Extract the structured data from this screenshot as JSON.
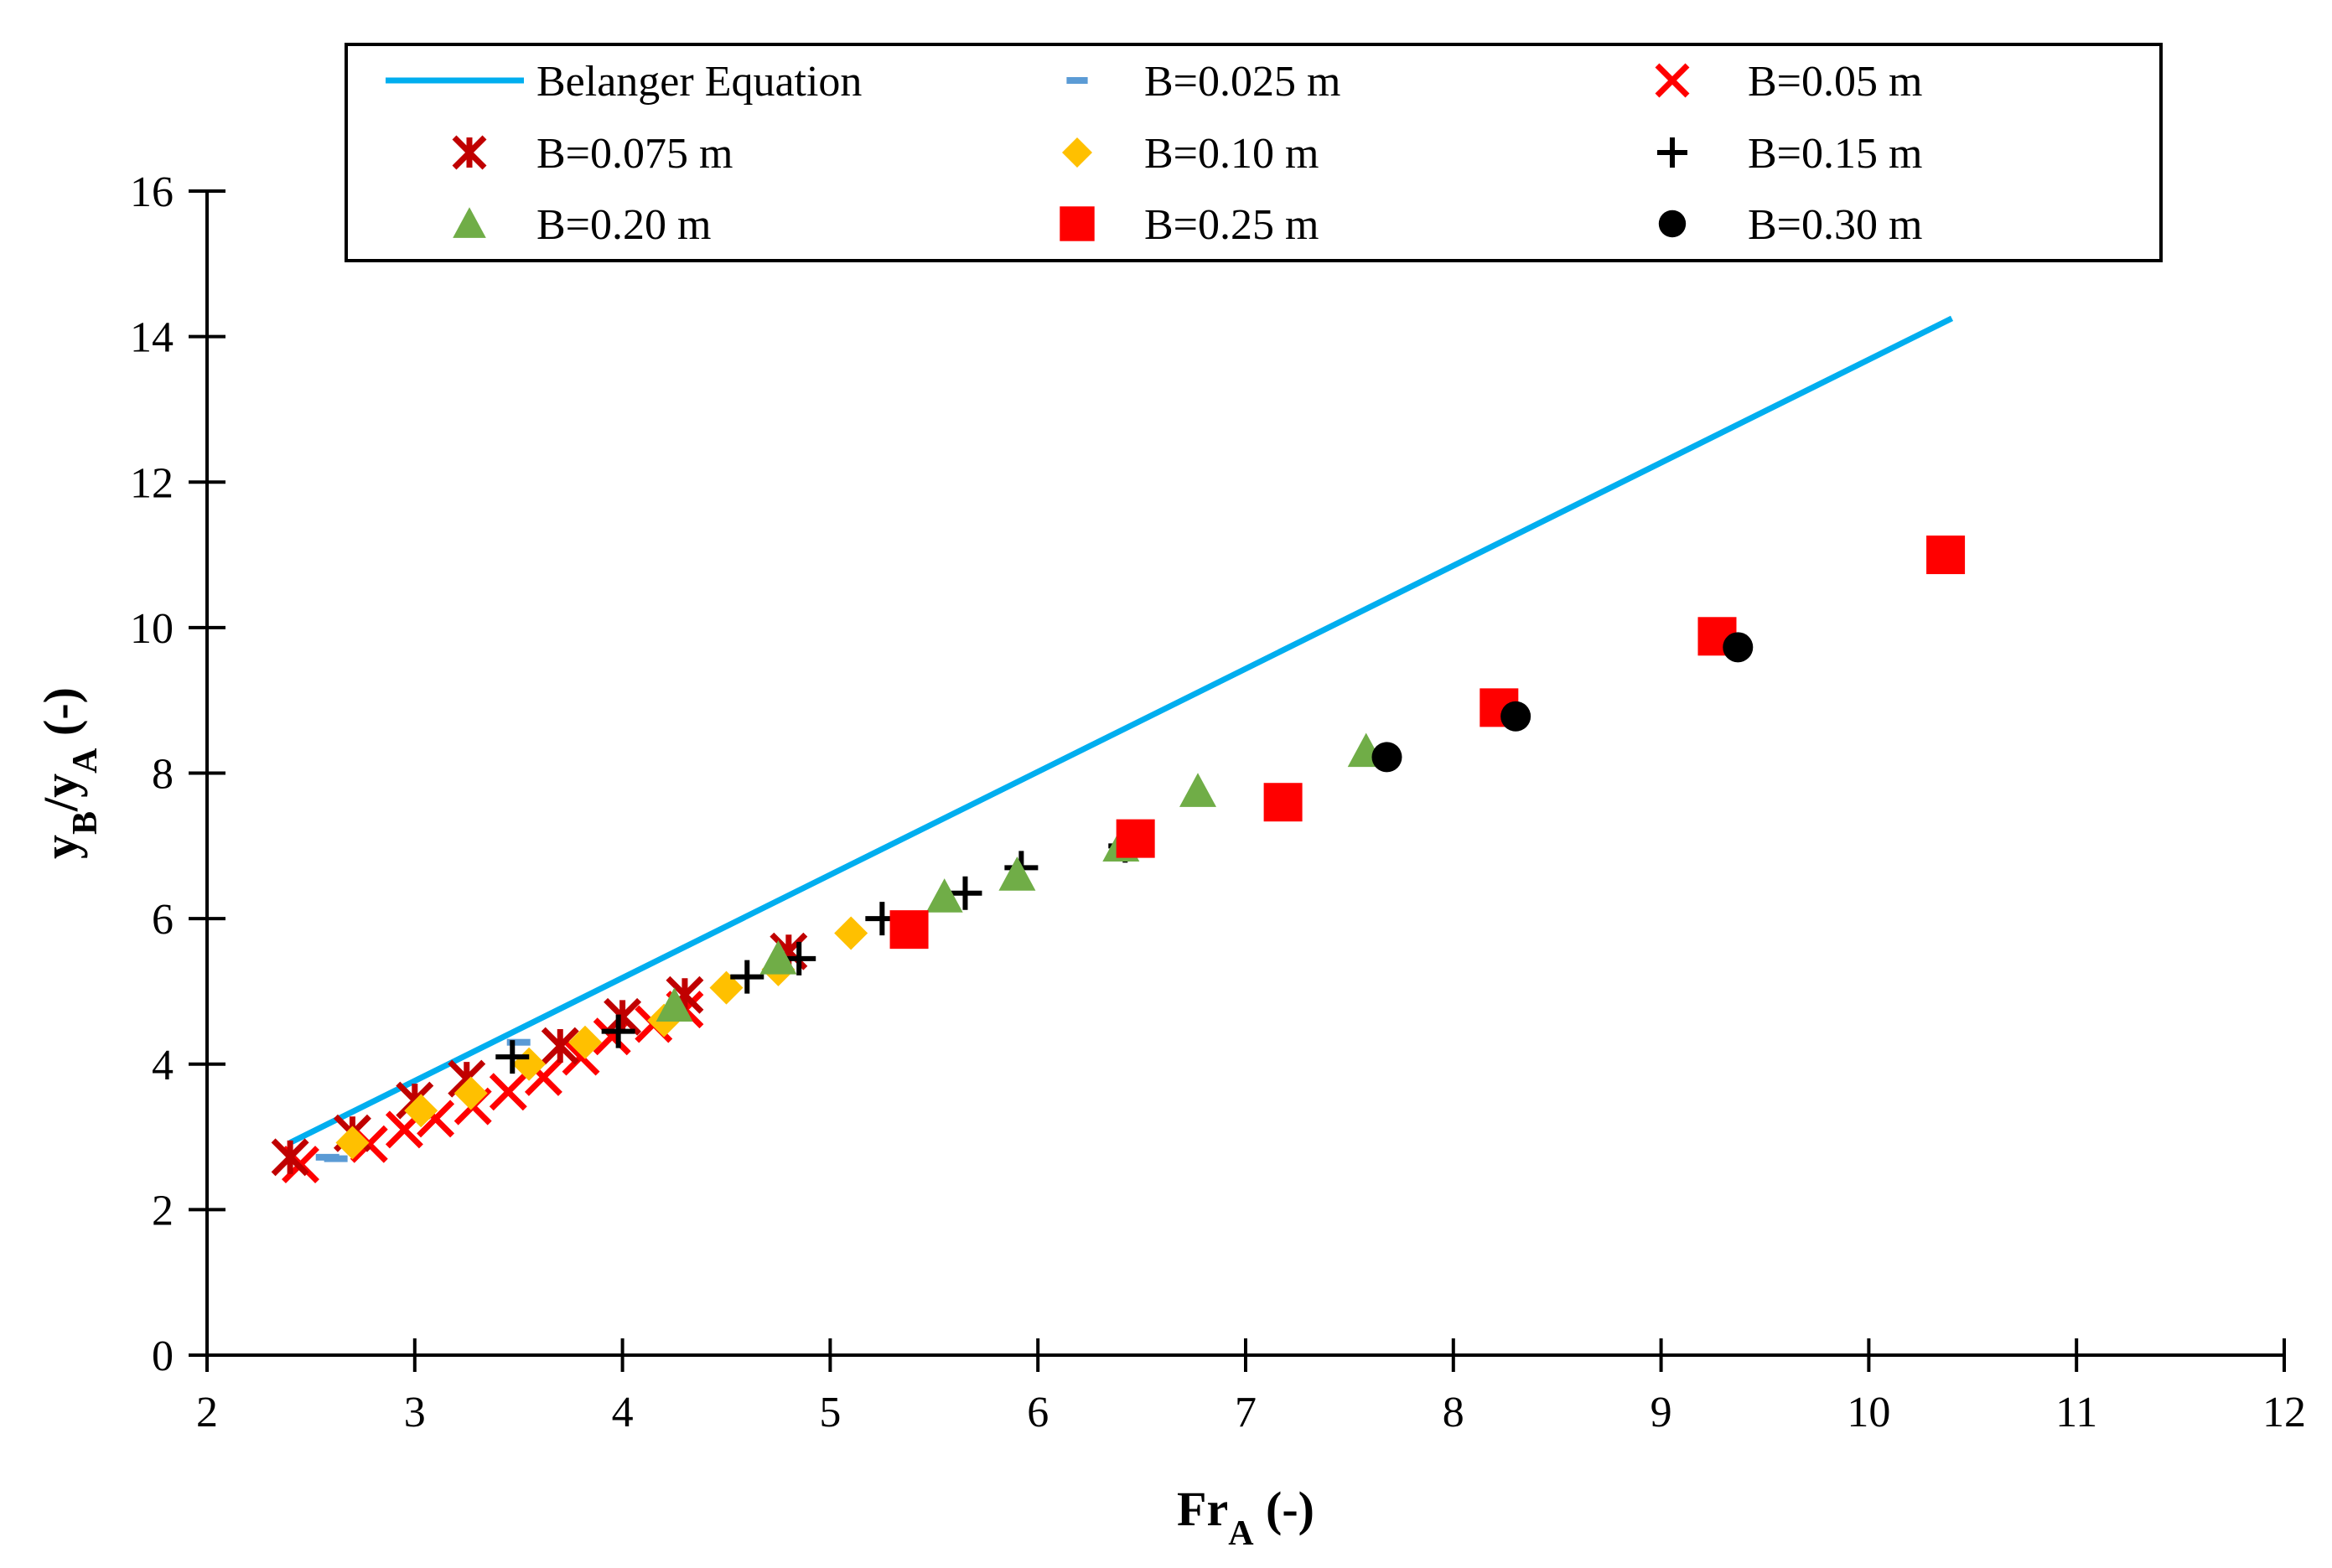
{
  "chart_data": {
    "type": "scatter",
    "title": "",
    "xlabel": "Fr",
    "xlabel_sub": "A",
    "xlabel_suffix": " (-)",
    "ylabel_parts": [
      "y",
      "B",
      "/y",
      "A",
      " (-)"
    ],
    "xlim": [
      2,
      12
    ],
    "ylim": [
      0,
      16
    ],
    "xticks": [
      "2",
      "3",
      "4",
      "5",
      "6",
      "7",
      "8",
      "9",
      "10",
      "11",
      "12"
    ],
    "yticks": [
      "0",
      "2",
      "4",
      "6",
      "8",
      "10",
      "12",
      "14",
      "16"
    ],
    "legend_placement": "top",
    "line": {
      "name": "Belanger Equation",
      "color": "#00AEEF",
      "x": [
        2.4,
        10.4
      ],
      "y": [
        2.92,
        14.25
      ]
    },
    "series": [
      {
        "name": "B=0.025 m",
        "marker": "dash",
        "color": "#5B9BD5",
        "points": [
          [
            2.58,
            2.72
          ],
          [
            2.62,
            2.7
          ],
          [
            3.5,
            4.3
          ]
        ]
      },
      {
        "name": "B=0.05 m",
        "marker": "x",
        "color": "#FF0000",
        "points": [
          [
            2.45,
            2.62
          ],
          [
            2.78,
            2.9
          ],
          [
            2.95,
            3.1
          ],
          [
            3.1,
            3.25
          ],
          [
            3.28,
            3.42
          ],
          [
            3.45,
            3.62
          ],
          [
            3.62,
            3.82
          ],
          [
            3.8,
            4.1
          ],
          [
            3.95,
            4.38
          ],
          [
            4.15,
            4.55
          ],
          [
            4.3,
            4.75
          ]
        ]
      },
      {
        "name": "B=0.075 m",
        "marker": "star",
        "color": "#C00000",
        "points": [
          [
            2.4,
            2.72
          ],
          [
            2.7,
            3.05
          ],
          [
            3.0,
            3.5
          ],
          [
            3.25,
            3.8
          ],
          [
            3.7,
            4.25
          ],
          [
            4.0,
            4.65
          ],
          [
            4.3,
            4.95
          ],
          [
            4.8,
            5.55
          ]
        ]
      },
      {
        "name": "B=0.10 m",
        "marker": "diamond",
        "color": "#FFC000",
        "points": [
          [
            2.7,
            2.92
          ],
          [
            3.03,
            3.36
          ],
          [
            3.27,
            3.6
          ],
          [
            3.55,
            4.0
          ],
          [
            3.82,
            4.3
          ],
          [
            4.2,
            4.6
          ],
          [
            4.5,
            5.05
          ],
          [
            4.75,
            5.3
          ],
          [
            5.1,
            5.8
          ]
        ]
      },
      {
        "name": "B=0.15 m",
        "marker": "plus",
        "color": "#000000",
        "points": [
          [
            3.47,
            4.1
          ],
          [
            3.98,
            4.45
          ],
          [
            4.6,
            5.2
          ],
          [
            4.85,
            5.45
          ],
          [
            5.25,
            6.0
          ],
          [
            5.65,
            6.35
          ],
          [
            5.92,
            6.7
          ],
          [
            6.42,
            7.0
          ]
        ]
      },
      {
        "name": "B=0.20 m",
        "marker": "triangle",
        "color": "#70AD47",
        "points": [
          [
            4.25,
            4.8
          ],
          [
            4.75,
            5.45
          ],
          [
            5.55,
            6.3
          ],
          [
            5.9,
            6.6
          ],
          [
            6.4,
            7.0
          ],
          [
            6.77,
            7.75
          ],
          [
            7.58,
            8.3
          ]
        ]
      },
      {
        "name": "B=0.25 m",
        "marker": "square",
        "color": "#FF0000",
        "points": [
          [
            5.38,
            5.85
          ],
          [
            6.47,
            7.1
          ],
          [
            7.18,
            7.6
          ],
          [
            8.22,
            8.9
          ],
          [
            9.27,
            9.88
          ],
          [
            10.37,
            11.0
          ]
        ]
      },
      {
        "name": "B=0.30 m",
        "marker": "circle",
        "color": "#000000",
        "points": [
          [
            7.68,
            8.22
          ],
          [
            8.3,
            8.78
          ],
          [
            9.37,
            9.73
          ]
        ]
      }
    ]
  }
}
